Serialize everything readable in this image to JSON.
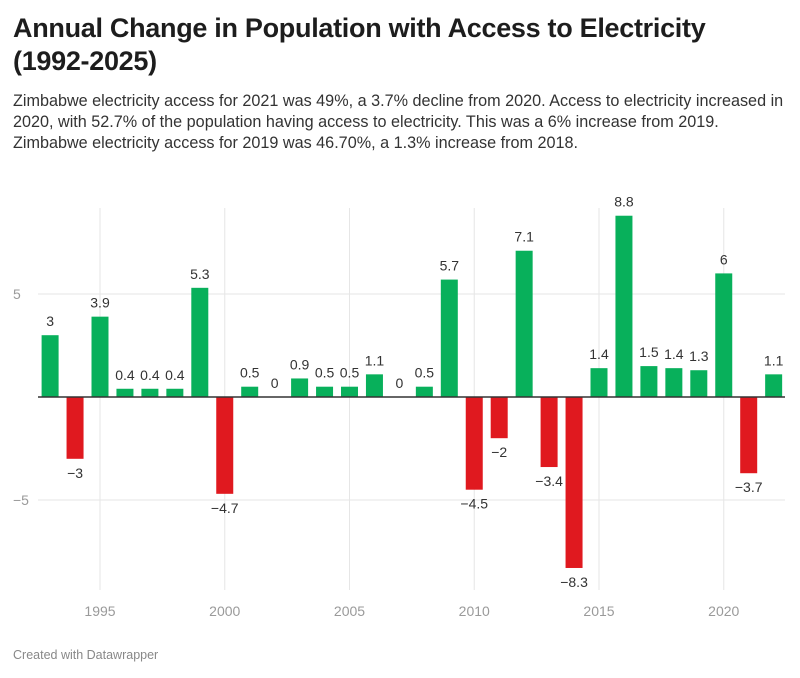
{
  "header": {
    "title": "Annual Change in Population with Access to Electricity (1992-2025)",
    "description": "Zimbabwe electricity access for 2021 was 49%, a 3.7% decline from 2020. Access to electricity increased in 2020, with 52.7% of the population having access to electricity. This was a 6% increase from 2019. Zimbabwe electricity access for 2019 was 46.70%, a 1.3% increase from 2018."
  },
  "footer": {
    "credit": "Created with Datawrapper"
  },
  "colors": {
    "positive": "#08b05b",
    "negative": "#e0191f",
    "grid": "#e6e6e6",
    "zero_line": "#333333"
  },
  "chart_data": {
    "type": "bar",
    "title": "Annual Change in Population with Access to Electricity (1992-2025)",
    "xlabel": "",
    "ylabel": "",
    "x": [
      1993,
      1994,
      1995,
      1996,
      1997,
      1998,
      1999,
      2000,
      2001,
      2002,
      2003,
      2004,
      2005,
      2006,
      2007,
      2008,
      2009,
      2010,
      2011,
      2012,
      2013,
      2014,
      2015,
      2016,
      2017,
      2018,
      2019,
      2020,
      2021,
      2022
    ],
    "values": [
      3,
      -3,
      3.9,
      0.4,
      0.4,
      0.4,
      5.3,
      -4.7,
      0.5,
      0,
      0.9,
      0.5,
      0.5,
      1.1,
      0,
      0.5,
      5.7,
      -4.5,
      -2,
      7.1,
      -3.4,
      -8.3,
      1.4,
      8.8,
      1.5,
      1.4,
      1.3,
      6,
      -3.7,
      1.1
    ],
    "labels": [
      "3",
      "-3",
      "3.9",
      "0.4",
      "0.4",
      "0.4",
      "5.3",
      "-4.7",
      "0.5",
      "0",
      "0.9",
      "0.5",
      "0.5",
      "1.1",
      "0",
      "0.5",
      "5.7",
      "-4.5",
      "-2",
      "7.1",
      "-3.4",
      "-8.3",
      "1.4",
      "8.8",
      "1.5",
      "1.4",
      "1.3",
      "6",
      "-3.7",
      "1.1"
    ],
    "x_ticks": [
      1995,
      2000,
      2005,
      2010,
      2015,
      2020
    ],
    "y_ticks": [
      5,
      -5
    ],
    "y_tick_labels": [
      "5",
      "−5"
    ],
    "ylim": [
      -9.2,
      8.8
    ],
    "xlim": [
      1992.5,
      2022.5
    ],
    "grid": true,
    "legend": "none"
  }
}
